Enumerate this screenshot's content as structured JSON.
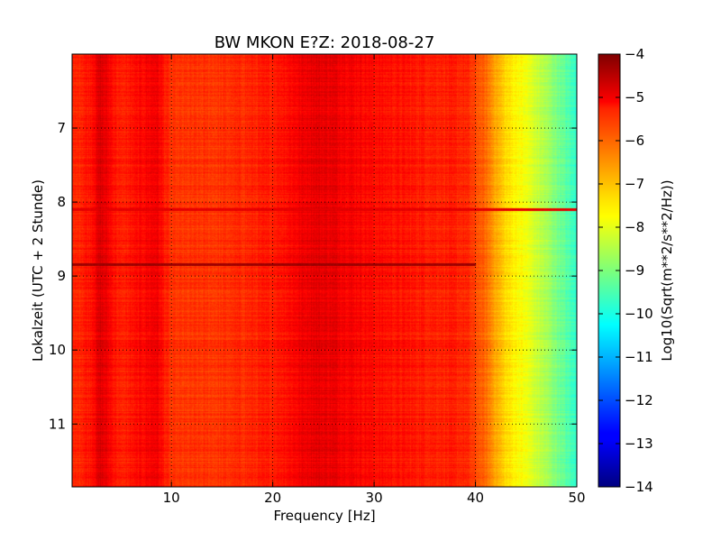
{
  "chart_data": {
    "type": "heatmap",
    "title": "BW MKON E?Z: 2018-08-27",
    "xlabel": "Frequency [Hz]",
    "ylabel": "Lokalzeit (UTC + 2 Stunde)",
    "xlim": [
      0.2,
      50
    ],
    "ylim": [
      6.0,
      11.85
    ],
    "y_inverted": true,
    "x_ticks": [
      10,
      20,
      30,
      40,
      50
    ],
    "x_tick_labels": [
      "10",
      "20",
      "30",
      "40",
      "50"
    ],
    "y_ticks": [
      7,
      8,
      9,
      10,
      11
    ],
    "y_tick_labels": [
      "7",
      "8",
      "9",
      "10",
      "11"
    ],
    "grid": true,
    "colorbar": {
      "label": "Log10(Sqrt(m**2/s**2/Hz))",
      "colormap": "jet",
      "range": [
        -14,
        -4
      ],
      "ticks": [
        -4,
        -5,
        -6,
        -7,
        -8,
        -9,
        -10,
        -11,
        -12,
        -13,
        -14
      ],
      "tick_labels": [
        "−4",
        "−5",
        "−6",
        "−7",
        "−8",
        "−9",
        "−10",
        "−11",
        "−12",
        "−13",
        "−14"
      ]
    },
    "spectrum_profile_freq_hz": [
      0,
      2,
      3,
      5,
      8.5,
      10,
      15,
      20,
      24,
      26,
      30,
      35,
      39,
      41,
      43,
      45,
      47,
      50
    ],
    "spectrum_profile_value": [
      -5.7,
      -5.4,
      -4.9,
      -5.6,
      -5.1,
      -5.8,
      -5.75,
      -5.5,
      -5.0,
      -5.05,
      -5.35,
      -5.5,
      -5.6,
      -6.3,
      -7.4,
      -7.9,
      -8.6,
      -9.8
    ],
    "strong_lines": [
      {
        "time": 8.85,
        "value": -4.3,
        "to_freq": 40
      },
      {
        "time": 8.1,
        "value": -5.0,
        "to_freq": 50
      }
    ]
  }
}
